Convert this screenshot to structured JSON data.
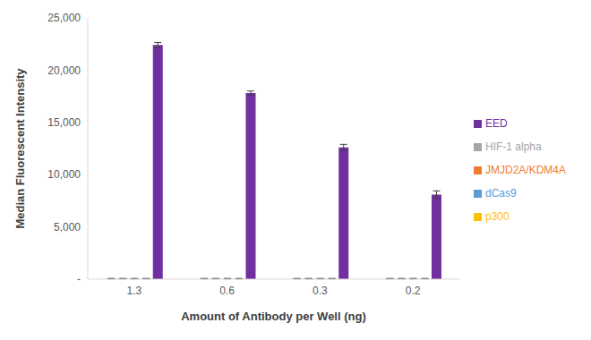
{
  "chart_data": {
    "type": "bar",
    "x_label": "Amount of Antibody per Well (ng)",
    "y_label": "Median Fluorescent Intensity",
    "categories": [
      "1.3",
      "0.6",
      "0.3",
      "0.2"
    ],
    "series": [
      {
        "name": "dCas9",
        "color": "#5b9bd5",
        "values": [
          50,
          50,
          50,
          50
        ],
        "errors": [
          20,
          20,
          20,
          20
        ]
      },
      {
        "name": "JMJD2A/KDM4A",
        "color": "#ed7d31",
        "values": [
          50,
          50,
          50,
          50
        ],
        "errors": [
          20,
          20,
          20,
          20
        ]
      },
      {
        "name": "HIF-1 alpha",
        "color": "#a5a5a5",
        "values": [
          50,
          50,
          50,
          50
        ],
        "errors": [
          20,
          20,
          20,
          20
        ]
      },
      {
        "name": "p300",
        "color": "#ffc000",
        "values": [
          50,
          50,
          50,
          50
        ],
        "errors": [
          20,
          20,
          20,
          20
        ]
      },
      {
        "name": "EED",
        "color": "#7030a0",
        "values": [
          22400,
          17800,
          12600,
          8100
        ],
        "errors": [
          250,
          200,
          300,
          350
        ]
      }
    ],
    "ylim": [
      0,
      25000
    ],
    "yticks": [
      {
        "value": 0,
        "label": "-"
      },
      {
        "value": 5000,
        "label": "5,000"
      },
      {
        "value": 10000,
        "label": "10,000"
      },
      {
        "value": 15000,
        "label": "15,000"
      },
      {
        "value": 20000,
        "label": "20,000"
      },
      {
        "value": 25000,
        "label": "25,000"
      }
    ],
    "grid": false,
    "legend": "right"
  }
}
